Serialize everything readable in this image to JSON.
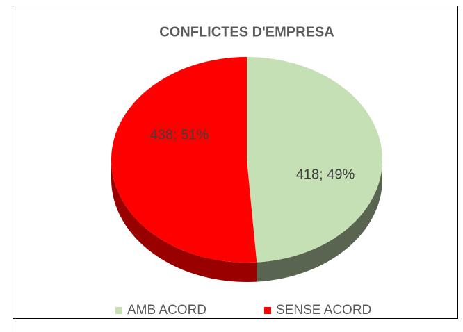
{
  "chart_data": {
    "type": "pie",
    "title": "CONFLICTES D'EMPRESA",
    "categories": [
      "AMB ACORD",
      "SENSE ACORD"
    ],
    "values": [
      418,
      438
    ],
    "value_labels": [
      "418; 49%",
      "438; 51%"
    ],
    "colors": [
      "#c5e0b4",
      "#ff0000"
    ],
    "legend": "bottom"
  }
}
